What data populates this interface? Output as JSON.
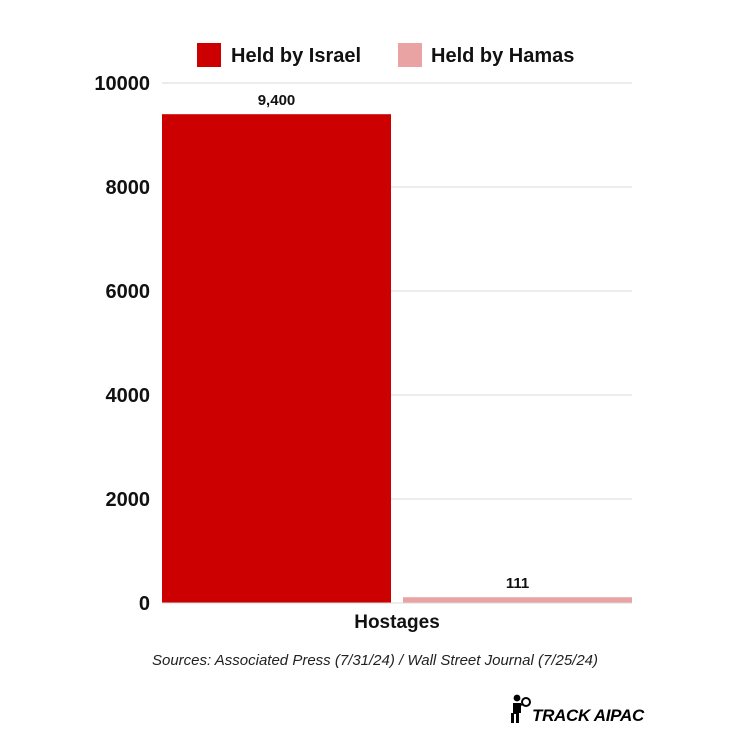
{
  "chart_data": {
    "type": "bar",
    "categories": [
      "Hostages"
    ],
    "series": [
      {
        "name": "Held by Israel",
        "values": [
          9400
        ],
        "color": "#cc0000",
        "value_label": "9,400"
      },
      {
        "name": "Held by Hamas",
        "values": [
          111
        ],
        "color": "#eaa3a3",
        "value_label": "111"
      }
    ],
    "title": "",
    "xlabel": "",
    "ylabel": "",
    "ylim": [
      0,
      10000
    ],
    "yticks": [
      0,
      2000,
      4000,
      6000,
      8000,
      10000
    ],
    "grid": true,
    "legend_position": "top"
  },
  "source": "Sources: Associated Press (7/31/24) / Wall Street Journal (7/25/24)",
  "brand": {
    "name": "TRACK AIPAC",
    "icon": "person-magnifier-icon"
  }
}
